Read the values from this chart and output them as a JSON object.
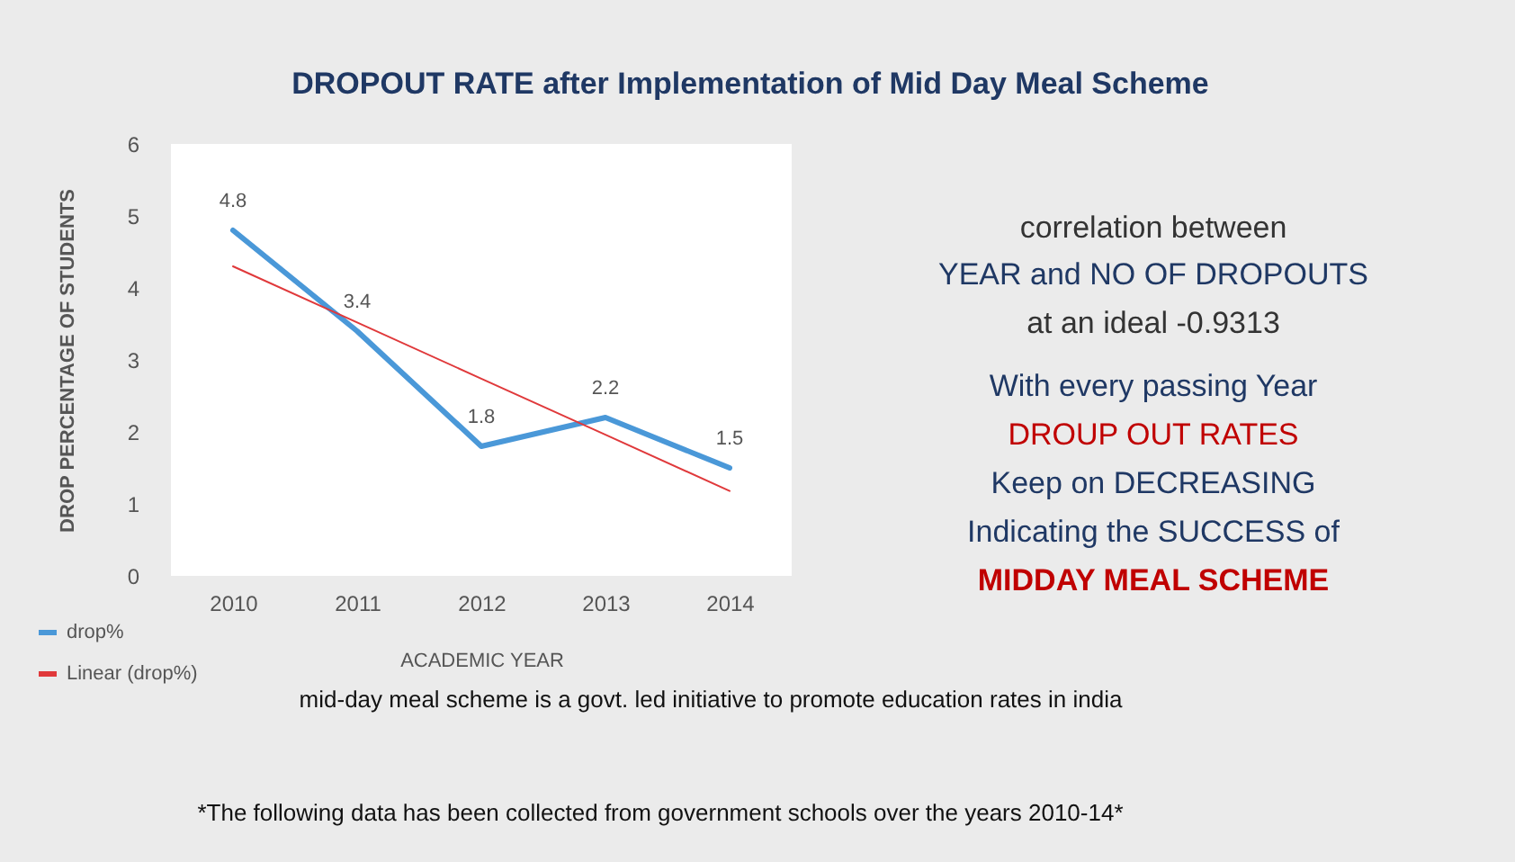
{
  "chart_data": {
    "type": "line",
    "title": "DROPOUT RATE after Implementation of Mid Day Meal Scheme",
    "xlabel": "ACADEMIC YEAR",
    "ylabel": "DROP PERCENTAGE OF STUDENTS",
    "categories": [
      "2010",
      "2011",
      "2012",
      "2013",
      "2014"
    ],
    "series": [
      {
        "name": "drop%",
        "color": "#4a98d8",
        "values": [
          4.8,
          3.4,
          1.8,
          2.2,
          1.5
        ],
        "value_labels": [
          "4.8",
          "3.4",
          "1.8",
          "2.2",
          "1.5"
        ]
      },
      {
        "name": "Linear (drop%)",
        "color": "#e0393b",
        "values": [
          4.3,
          3.52,
          2.74,
          1.96,
          1.18
        ]
      }
    ],
    "ylim": [
      0,
      6
    ],
    "yticks": [
      0,
      1,
      2,
      3,
      4,
      5,
      6
    ],
    "grid": false,
    "legend": "bottom left",
    "annotations": [
      "correlation between",
      "YEAR and NO OF DROPOUTS",
      "at an ideal -0.9313",
      "With every passing Year",
      "DROUP OUT RATES",
      "Keep on DECREASING",
      "Indicating the SUCCESS of",
      "MIDDAY MEAL SCHEME",
      "mid-day meal scheme is a govt. led initiative to promote education rates in india",
      "*The following data has been collected from government schools over the years 2010-14*"
    ]
  }
}
